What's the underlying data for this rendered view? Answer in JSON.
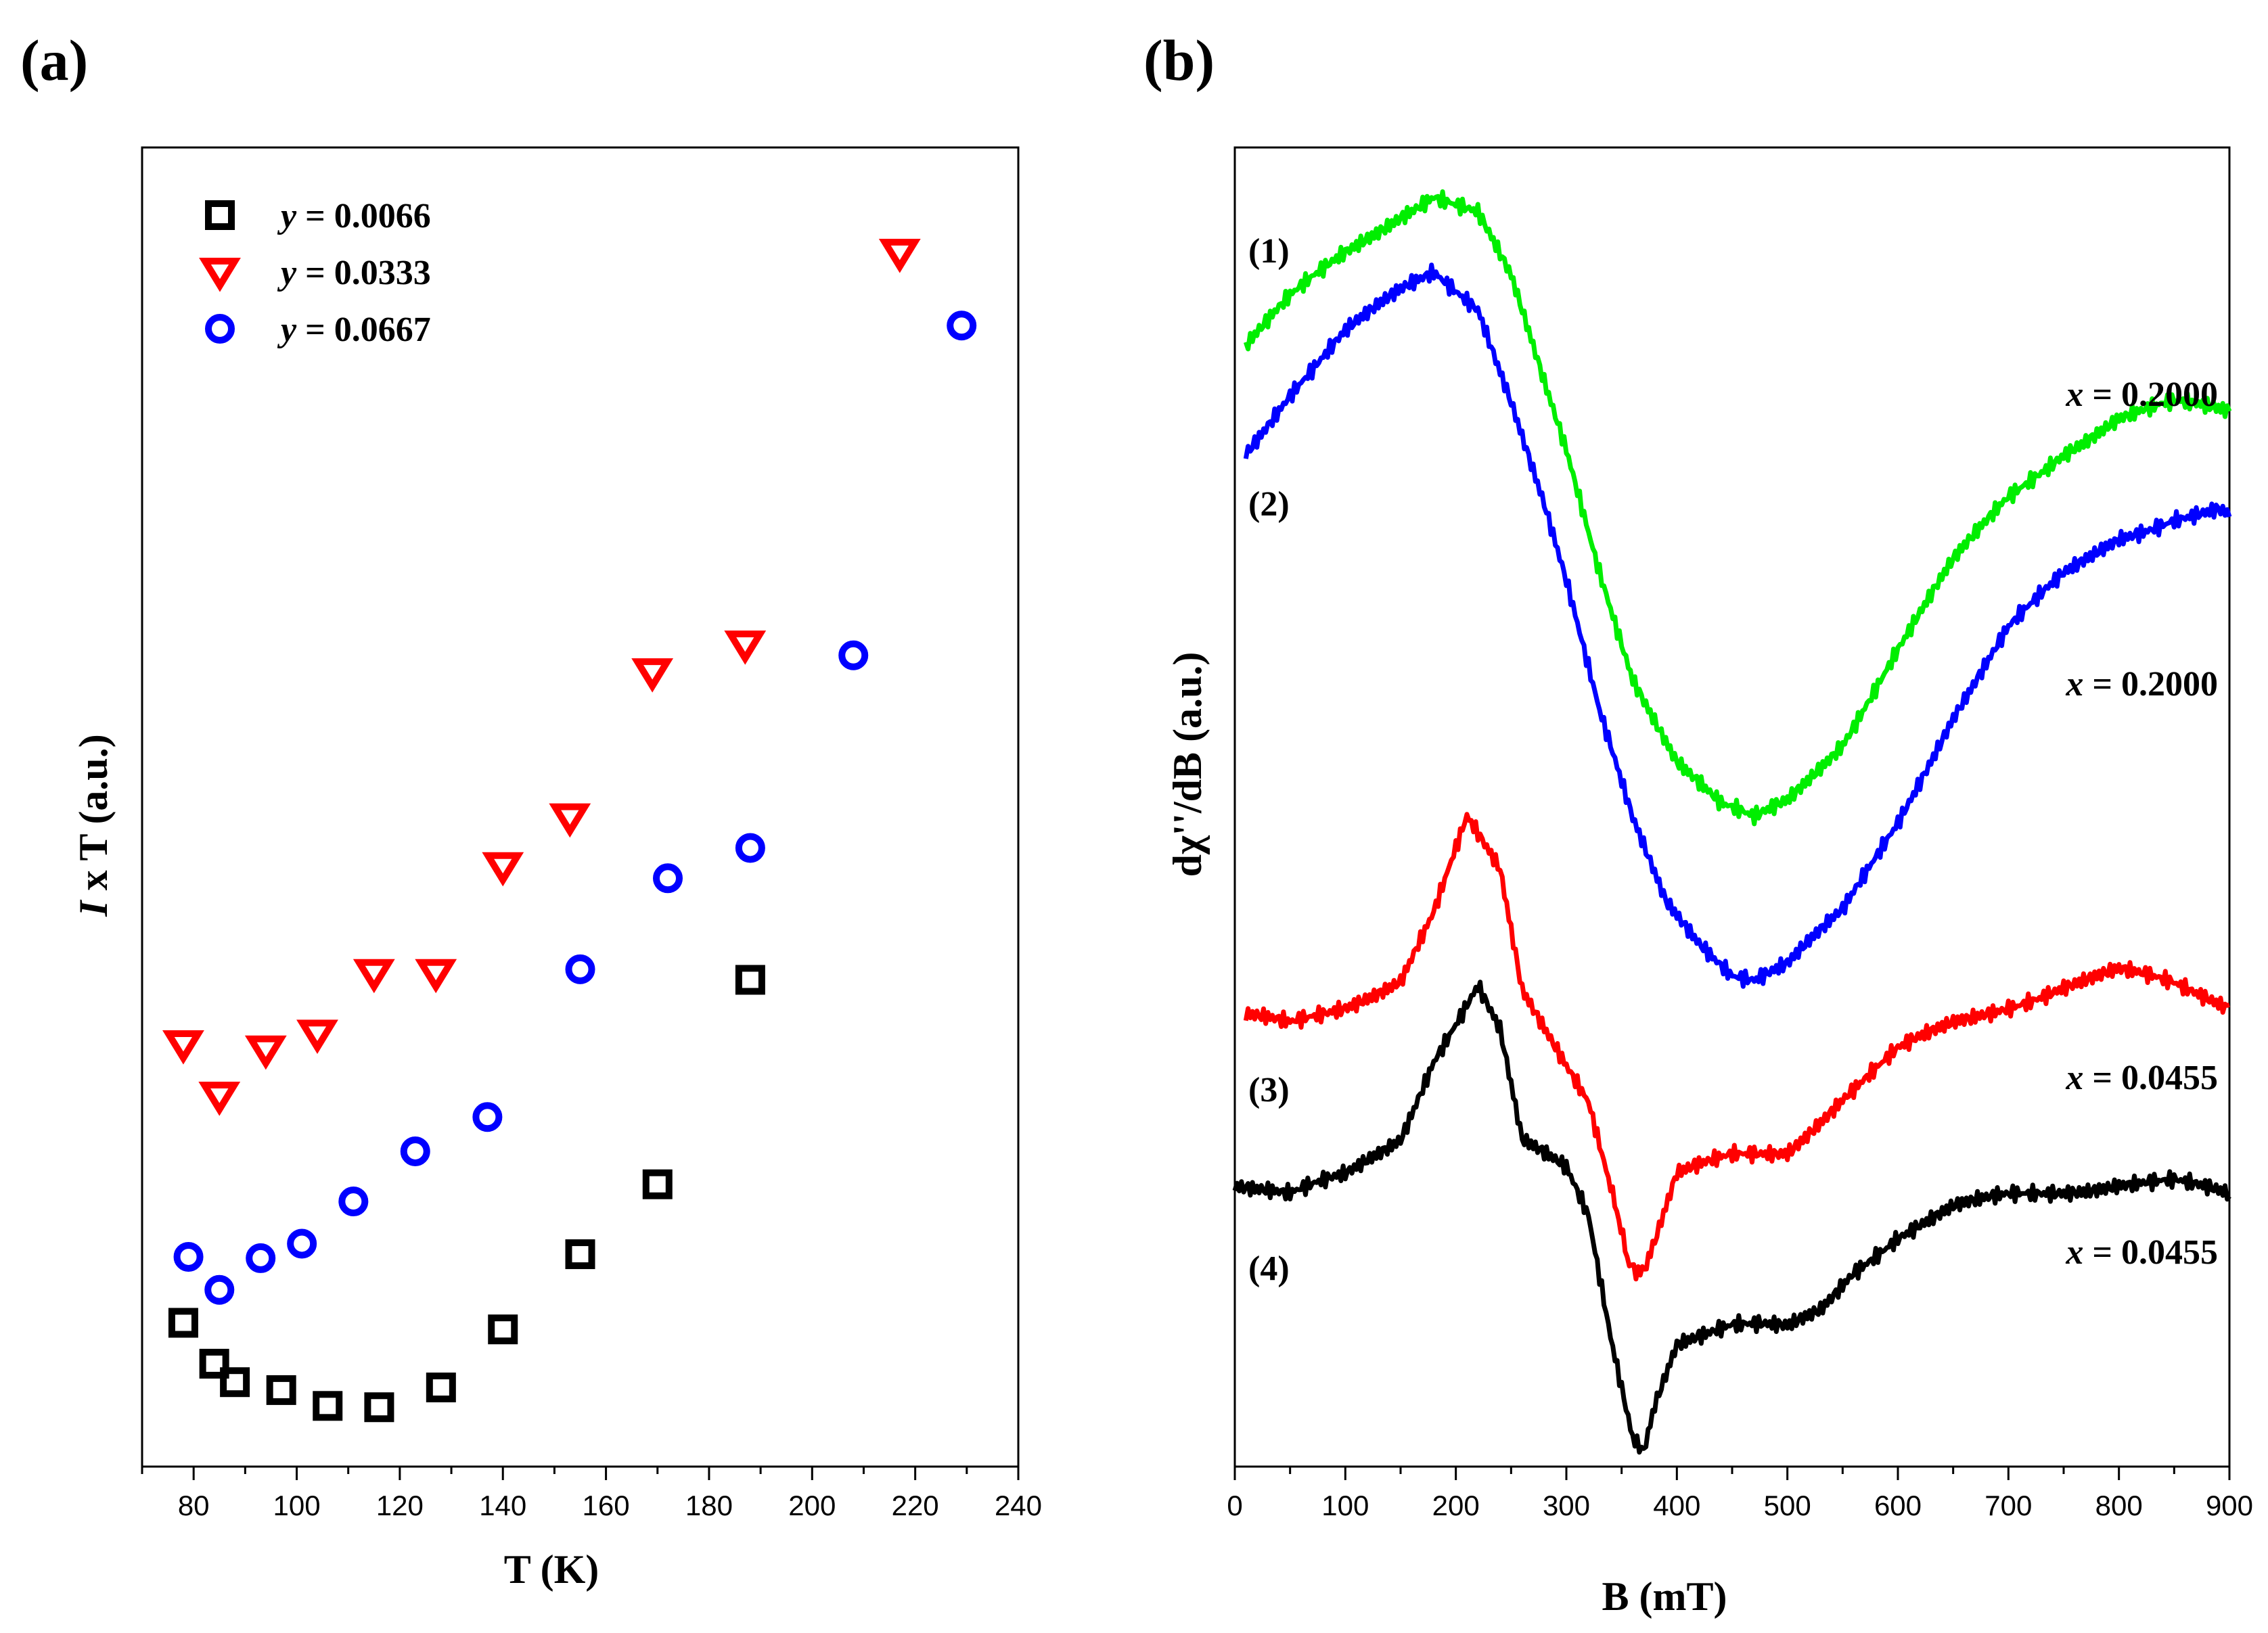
{
  "chart_data": [
    {
      "panel_label": "(a)",
      "type": "scatter",
      "xlabel": "T (K)",
      "ylabel_var": "I",
      "ylabel_rest": " x T  (a.u.)",
      "xlim": [
        70,
        240
      ],
      "ylim": [
        0,
        100
      ],
      "xticks": [
        80,
        100,
        120,
        140,
        160,
        180,
        200,
        220,
        240
      ],
      "series": [
        {
          "var": "y",
          "name": " = 0.0066",
          "marker": "square",
          "color": "#000000",
          "x": [
            78,
            84,
            88,
            97,
            106,
            116,
            128,
            140,
            155,
            170,
            188
          ],
          "y": [
            10.9,
            7.8,
            6.4,
            5.8,
            4.6,
            4.5,
            6.0,
            10.4,
            16.1,
            21.4,
            36.9
          ]
        },
        {
          "var": "y",
          "name": " = 0.0333",
          "marker": "triangle-down",
          "color": "#ff0000",
          "x": [
            78,
            85,
            94,
            104,
            115,
            127,
            140,
            153,
            169,
            187,
            217
          ],
          "y": [
            32.0,
            28.1,
            31.6,
            32.8,
            37.4,
            37.4,
            45.5,
            49.2,
            60.2,
            62.3,
            92.0
          ]
        },
        {
          "var": "y",
          "name": " = 0.0667",
          "marker": "circle",
          "color": "#0000ff",
          "x": [
            79,
            85,
            93,
            101,
            111,
            123,
            137,
            155,
            172,
            188,
            208,
            229
          ],
          "y": [
            15.9,
            13.4,
            15.8,
            16.9,
            20.1,
            23.9,
            26.5,
            37.7,
            44.6,
            46.9,
            61.5,
            86.5
          ]
        }
      ]
    },
    {
      "panel_label": "(b)",
      "type": "line",
      "xlabel": "B  (mT)",
      "ylabel": "dχ''/dB  (a.u.)",
      "xlim": [
        0,
        900
      ],
      "ylim": [
        0,
        100
      ],
      "xticks": [
        0,
        100,
        200,
        300,
        400,
        500,
        600,
        700,
        800,
        900
      ],
      "series": [
        {
          "index_label": "(1)",
          "var": "x",
          "name": " = 0.2000",
          "color": "#00ee00",
          "x": [
            10,
            50,
            100,
            150,
            180,
            220,
            250,
            280,
            300,
            330,
            360,
            400,
            440,
            470,
            500,
            550,
            600,
            650,
            700,
            750,
            800,
            850,
            900
          ],
          "y": [
            85,
            88.5,
            92,
            95,
            96.5,
            95,
            90,
            82,
            77,
            68,
            60,
            53.5,
            50,
            49,
            50.5,
            55,
            62,
            68.5,
            73.5,
            77,
            79.5,
            80.5,
            80
          ]
        },
        {
          "index_label": "(2)",
          "var": "x",
          "name": " = 0.2000",
          "color": "#0000ff",
          "x": [
            10,
            50,
            100,
            150,
            180,
            220,
            250,
            280,
            300,
            330,
            360,
            390,
            420,
            450,
            470,
            500,
            550,
            600,
            650,
            700,
            750,
            800,
            850,
            890,
            900
          ],
          "y": [
            77,
            81.5,
            86,
            89,
            90.5,
            88,
            81,
            73,
            67,
            57,
            49,
            43,
            40,
            37.5,
            37,
            38,
            42,
            49,
            57,
            63.5,
            67.5,
            70.5,
            72,
            72.5,
            72
          ]
        },
        {
          "index_label": "(3)",
          "var": "x",
          "name": " = 0.0455",
          "color": "#ff0000",
          "x": [
            10,
            50,
            100,
            150,
            180,
            210,
            240,
            260,
            290,
            320,
            340,
            355,
            365,
            380,
            400,
            450,
            500,
            550,
            600,
            650,
            700,
            750,
            800,
            850,
            900
          ],
          "y": [
            34,
            33.5,
            35,
            37,
            42,
            49,
            45,
            36,
            32,
            28,
            21.5,
            15.5,
            14.5,
            17,
            22,
            23.5,
            24,
            28,
            31.5,
            33.5,
            35,
            36.5,
            37.5,
            36.5,
            35
          ]
        },
        {
          "index_label": "(4)",
          "var": "x",
          "name": " = 0.0455",
          "color": "#000000",
          "x": [
            0,
            50,
            100,
            150,
            180,
            220,
            240,
            260,
            300,
            320,
            340,
            360,
            370,
            380,
            400,
            450,
            500,
            530,
            560,
            600,
            650,
            700,
            750,
            800,
            850,
            900
          ],
          "y": [
            21.5,
            20.5,
            22,
            25,
            31,
            36.5,
            33,
            24.5,
            22.5,
            19,
            10,
            2.5,
            1.5,
            5,
            9.5,
            10.5,
            10.5,
            12,
            15,
            17.5,
            19.5,
            20.5,
            21,
            21.5,
            21.5,
            20.5
          ]
        }
      ]
    }
  ]
}
